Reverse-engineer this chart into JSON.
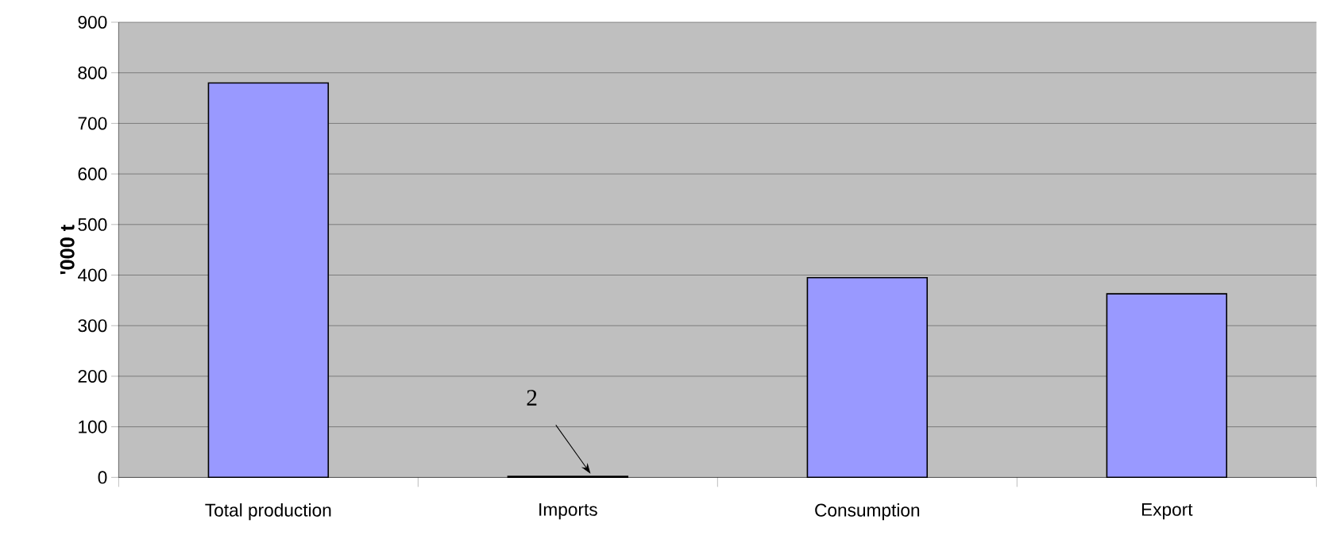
{
  "chart_data": {
    "type": "bar",
    "ylabel": "'000 t",
    "categories": [
      "Total production",
      "Imports",
      "Consumption",
      "Export"
    ],
    "values": [
      780,
      2,
      395,
      363
    ],
    "color": "#9999ff",
    "ylim": [
      0,
      900
    ],
    "yticks": [
      0,
      100,
      200,
      300,
      400,
      500,
      600,
      700,
      800,
      900
    ],
    "grid": "y",
    "annotations": [
      "2"
    ]
  }
}
